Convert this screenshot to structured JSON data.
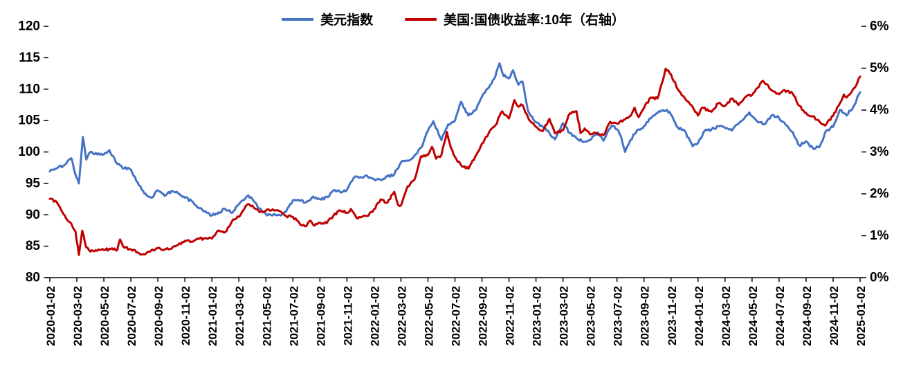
{
  "legend": [
    {
      "label": "美元指数"
    },
    {
      "label": "美国:国债收益率:10年（右轴）"
    }
  ],
  "chart_data": {
    "type": "line",
    "title": "",
    "xlabel": "",
    "ylabel_left": "",
    "ylabel_right": "",
    "grid": false,
    "legend_position": "top-center",
    "left_axis": {
      "min": 80,
      "max": 120,
      "ticks": [
        120,
        115,
        110,
        105,
        100,
        95,
        90,
        85,
        80
      ]
    },
    "right_axis": {
      "min": 0,
      "max": 6,
      "tick_labels": [
        "6%",
        "5%",
        "4%",
        "3%",
        "2%",
        "1%",
        "0%"
      ],
      "ticks": [
        6,
        5,
        4,
        3,
        2,
        1,
        0
      ]
    },
    "x_unit": "months since 2020-01-02 (0..60)",
    "x_tick_step_months": 2,
    "x_tick_labels": [
      "2020-01-02",
      "2020-03-02",
      "2020-05-02",
      "2020-07-02",
      "2020-09-02",
      "2020-11-02",
      "2021-01-02",
      "2021-03-02",
      "2021-05-02",
      "2021-07-02",
      "2021-09-02",
      "2021-11-02",
      "2022-01-02",
      "2022-03-02",
      "2022-05-02",
      "2022-07-02",
      "2022-09-02",
      "2022-11-02",
      "2023-01-02",
      "2023-03-02",
      "2023-05-02",
      "2023-07-02",
      "2023-09-02",
      "2023-11-02",
      "2024-01-02",
      "2024-03-02",
      "2024-05-02",
      "2024-07-02",
      "2024-09-02",
      "2024-11-02",
      "2025-01-02"
    ],
    "series": [
      {
        "name": "美元指数",
        "axis": "left",
        "color": "#4472C4",
        "points": [
          [
            0,
            96.9
          ],
          [
            0.5,
            97.4
          ],
          [
            1,
            97.8
          ],
          [
            1.6,
            99.0
          ],
          [
            1.9,
            96.4
          ],
          [
            2.15,
            95.0
          ],
          [
            2.45,
            102.4
          ],
          [
            2.7,
            98.8
          ],
          [
            3,
            100.0
          ],
          [
            3.5,
            99.6
          ],
          [
            4,
            99.6
          ],
          [
            4.4,
            100.3
          ],
          [
            5,
            98.1
          ],
          [
            5.5,
            97.4
          ],
          [
            6,
            97.2
          ],
          [
            6.6,
            94.7
          ],
          [
            7,
            93.4
          ],
          [
            7.5,
            92.7
          ],
          [
            8,
            93.9
          ],
          [
            8.5,
            93.0
          ],
          [
            9,
            93.8
          ],
          [
            9.5,
            93.4
          ],
          [
            10,
            92.7
          ],
          [
            10.5,
            92.2
          ],
          [
            11,
            91.1
          ],
          [
            11.5,
            90.6
          ],
          [
            12,
            89.9
          ],
          [
            12.5,
            90.4
          ],
          [
            13,
            90.9
          ],
          [
            13.5,
            90.3
          ],
          [
            14,
            91.7
          ],
          [
            14.7,
            93.1
          ],
          [
            15,
            92.5
          ],
          [
            15.5,
            91.0
          ],
          [
            16,
            90.1
          ],
          [
            16.5,
            89.9
          ],
          [
            17,
            90.0
          ],
          [
            17.5,
            90.5
          ],
          [
            18,
            92.3
          ],
          [
            18.5,
            92.2
          ],
          [
            19,
            92.0
          ],
          [
            19.5,
            92.9
          ],
          [
            20,
            92.5
          ],
          [
            20.6,
            92.8
          ],
          [
            21,
            93.9
          ],
          [
            21.5,
            93.6
          ],
          [
            22,
            94.0
          ],
          [
            22.6,
            96.1
          ],
          [
            23,
            96.0
          ],
          [
            23.5,
            96.2
          ],
          [
            24,
            95.7
          ],
          [
            24.5,
            95.6
          ],
          [
            25,
            96.1
          ],
          [
            25.5,
            96.4
          ],
          [
            26,
            98.3
          ],
          [
            26.5,
            98.6
          ],
          [
            27,
            99.4
          ],
          [
            27.5,
            100.7
          ],
          [
            28,
            103.4
          ],
          [
            28.4,
            104.9
          ],
          [
            29,
            101.9
          ],
          [
            29.5,
            104.4
          ],
          [
            30,
            105.0
          ],
          [
            30.45,
            108.0
          ],
          [
            31,
            105.8
          ],
          [
            31.5,
            106.6
          ],
          [
            32,
            108.8
          ],
          [
            32.5,
            110.2
          ],
          [
            33,
            112.1
          ],
          [
            33.3,
            114.1
          ],
          [
            33.6,
            112.1
          ],
          [
            34,
            111.7
          ],
          [
            34.3,
            113.0
          ],
          [
            34.7,
            110.7
          ],
          [
            35,
            111.2
          ],
          [
            35.4,
            106.6
          ],
          [
            36,
            104.7
          ],
          [
            36.5,
            104.0
          ],
          [
            37,
            103.0
          ],
          [
            37.4,
            102.0
          ],
          [
            38,
            104.6
          ],
          [
            38.5,
            103.0
          ],
          [
            39,
            102.2
          ],
          [
            39.5,
            101.6
          ],
          [
            40,
            101.9
          ],
          [
            40.6,
            103.1
          ],
          [
            41,
            101.8
          ],
          [
            41.6,
            104.2
          ],
          [
            42,
            103.6
          ],
          [
            42.3,
            102.4
          ],
          [
            42.6,
            100.0
          ],
          [
            43,
            101.9
          ],
          [
            43.5,
            103.5
          ],
          [
            44,
            104.1
          ],
          [
            44.6,
            105.6
          ],
          [
            45,
            106.2
          ],
          [
            45.7,
            106.7
          ],
          [
            46,
            105.9
          ],
          [
            46.5,
            103.9
          ],
          [
            47,
            103.4
          ],
          [
            47.6,
            100.9
          ],
          [
            48,
            101.4
          ],
          [
            48.5,
            103.4
          ],
          [
            49,
            103.6
          ],
          [
            49.5,
            104.1
          ],
          [
            50,
            103.8
          ],
          [
            50.5,
            103.4
          ],
          [
            51,
            104.5
          ],
          [
            51.8,
            106.3
          ],
          [
            52,
            105.7
          ],
          [
            52.5,
            104.7
          ],
          [
            53,
            104.5
          ],
          [
            53.5,
            105.9
          ],
          [
            54,
            105.4
          ],
          [
            54.5,
            104.3
          ],
          [
            55,
            103.2
          ],
          [
            55.5,
            101.0
          ],
          [
            56,
            101.7
          ],
          [
            56.5,
            100.6
          ],
          [
            57,
            100.8
          ],
          [
            57.5,
            103.4
          ],
          [
            58,
            104.0
          ],
          [
            58.5,
            106.7
          ],
          [
            59,
            105.8
          ],
          [
            59.5,
            107.2
          ],
          [
            60,
            109.5
          ]
        ]
      },
      {
        "name": "美国:国债收益率:10年（右轴）",
        "axis": "right",
        "color": "#C00000",
        "points": [
          [
            0,
            1.88
          ],
          [
            0.5,
            1.81
          ],
          [
            1,
            1.52
          ],
          [
            1.5,
            1.32
          ],
          [
            1.9,
            1.1
          ],
          [
            2.15,
            0.54
          ],
          [
            2.4,
            1.12
          ],
          [
            2.7,
            0.72
          ],
          [
            3,
            0.62
          ],
          [
            3.5,
            0.64
          ],
          [
            4,
            0.66
          ],
          [
            4.5,
            0.68
          ],
          [
            5,
            0.66
          ],
          [
            5.2,
            0.91
          ],
          [
            5.5,
            0.72
          ],
          [
            6,
            0.68
          ],
          [
            6.5,
            0.6
          ],
          [
            7,
            0.55
          ],
          [
            7.5,
            0.65
          ],
          [
            8,
            0.7
          ],
          [
            8.5,
            0.67
          ],
          [
            9,
            0.69
          ],
          [
            9.5,
            0.78
          ],
          [
            10,
            0.88
          ],
          [
            10.5,
            0.86
          ],
          [
            11,
            0.92
          ],
          [
            11.5,
            0.94
          ],
          [
            12,
            0.93
          ],
          [
            12.4,
            1.11
          ],
          [
            13,
            1.09
          ],
          [
            13.5,
            1.35
          ],
          [
            14,
            1.45
          ],
          [
            14.6,
            1.74
          ],
          [
            15,
            1.72
          ],
          [
            15.5,
            1.57
          ],
          [
            16,
            1.6
          ],
          [
            16.5,
            1.63
          ],
          [
            17,
            1.59
          ],
          [
            17.5,
            1.47
          ],
          [
            18,
            1.45
          ],
          [
            18.5,
            1.29
          ],
          [
            19,
            1.23
          ],
          [
            19.3,
            1.36
          ],
          [
            19.6,
            1.24
          ],
          [
            20,
            1.31
          ],
          [
            20.5,
            1.3
          ],
          [
            21,
            1.48
          ],
          [
            21.5,
            1.6
          ],
          [
            22,
            1.55
          ],
          [
            22.3,
            1.64
          ],
          [
            22.7,
            1.43
          ],
          [
            23,
            1.44
          ],
          [
            23.5,
            1.47
          ],
          [
            24,
            1.63
          ],
          [
            24.5,
            1.87
          ],
          [
            25,
            1.79
          ],
          [
            25.5,
            2.05
          ],
          [
            25.8,
            1.73
          ],
          [
            26,
            1.72
          ],
          [
            26.5,
            2.18
          ],
          [
            27,
            2.34
          ],
          [
            27.5,
            2.9
          ],
          [
            28,
            2.93
          ],
          [
            28.3,
            3.12
          ],
          [
            28.6,
            2.84
          ],
          [
            29,
            2.93
          ],
          [
            29.4,
            3.48
          ],
          [
            29.7,
            3.1
          ],
          [
            30,
            2.88
          ],
          [
            30.5,
            2.66
          ],
          [
            31,
            2.6
          ],
          [
            31.5,
            2.89
          ],
          [
            32,
            3.2
          ],
          [
            32.5,
            3.45
          ],
          [
            33,
            3.64
          ],
          [
            33.5,
            3.97
          ],
          [
            34,
            3.8
          ],
          [
            34.4,
            4.24
          ],
          [
            34.7,
            4.08
          ],
          [
            35,
            4.12
          ],
          [
            35.4,
            3.83
          ],
          [
            36,
            3.6
          ],
          [
            36.5,
            3.5
          ],
          [
            37,
            3.79
          ],
          [
            37.4,
            3.45
          ],
          [
            38,
            3.52
          ],
          [
            38.5,
            3.92
          ],
          [
            39,
            3.97
          ],
          [
            39.3,
            3.45
          ],
          [
            39.6,
            3.56
          ],
          [
            40,
            3.42
          ],
          [
            40.5,
            3.45
          ],
          [
            41,
            3.4
          ],
          [
            41.5,
            3.72
          ],
          [
            42,
            3.68
          ],
          [
            42.5,
            3.77
          ],
          [
            43,
            3.86
          ],
          [
            43.3,
            4.06
          ],
          [
            43.6,
            3.83
          ],
          [
            44,
            4.05
          ],
          [
            44.5,
            4.3
          ],
          [
            45,
            4.28
          ],
          [
            45.3,
            4.62
          ],
          [
            45.6,
            4.99
          ],
          [
            46,
            4.85
          ],
          [
            46.5,
            4.5
          ],
          [
            47,
            4.3
          ],
          [
            47.5,
            4.12
          ],
          [
            48,
            3.87
          ],
          [
            48.3,
            4.06
          ],
          [
            49,
            3.96
          ],
          [
            49.5,
            4.16
          ],
          [
            50,
            4.1
          ],
          [
            50.5,
            4.28
          ],
          [
            51,
            4.12
          ],
          [
            51.5,
            4.31
          ],
          [
            52,
            4.36
          ],
          [
            52.8,
            4.7
          ],
          [
            53,
            4.62
          ],
          [
            53.5,
            4.46
          ],
          [
            54,
            4.38
          ],
          [
            54.3,
            4.47
          ],
          [
            55,
            4.4
          ],
          [
            55.5,
            4.1
          ],
          [
            56,
            3.93
          ],
          [
            56.5,
            3.85
          ],
          [
            57,
            3.72
          ],
          [
            57.4,
            3.63
          ],
          [
            58,
            3.86
          ],
          [
            58.4,
            4.1
          ],
          [
            58.8,
            4.37
          ],
          [
            59,
            4.3
          ],
          [
            59.4,
            4.45
          ],
          [
            59.7,
            4.58
          ],
          [
            60,
            4.8
          ]
        ]
      }
    ]
  }
}
